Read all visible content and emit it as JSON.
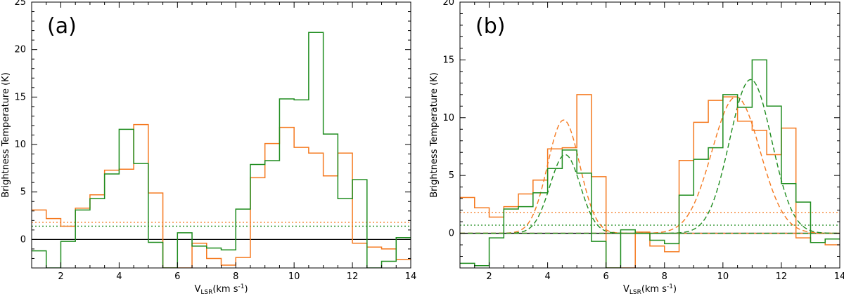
{
  "colors": {
    "orange": "#f5791f",
    "green": "#1e8c1e",
    "axis": "#000000"
  },
  "chart_data": [
    {
      "type": "line",
      "panel_label": "(a)",
      "xlabel_main": "V",
      "xlabel_sub": "LSR",
      "xlabel_rest": "(km s",
      "xlabel_sup": "-1",
      "xlabel_close": ")",
      "ylabel": "Brightness Temperature (K)",
      "xlim": [
        1,
        14
      ],
      "ylim": [
        -3,
        25
      ],
      "xticks": [
        2,
        4,
        6,
        8,
        10,
        12,
        14
      ],
      "yticks": [
        0,
        5,
        10,
        15,
        20,
        25
      ],
      "bin_edges": [
        1.0,
        1.5,
        2.0,
        2.5,
        3.0,
        3.5,
        4.0,
        4.5,
        5.0,
        5.5,
        6.0,
        6.5,
        7.0,
        7.5,
        8.0,
        8.5,
        9.0,
        9.5,
        10.0,
        10.5,
        11.0,
        11.5,
        12.0,
        12.5,
        13.0,
        13.5,
        14.0
      ],
      "series": [
        {
          "color": "orange",
          "style": "step",
          "values": [
            3.1,
            2.2,
            1.4,
            3.3,
            4.7,
            7.3,
            7.4,
            12.1,
            4.9,
            -3,
            -3,
            -0.4,
            -2.0,
            -2.7,
            -1.9,
            6.5,
            10.1,
            11.8,
            9.7,
            9.1,
            6.7,
            9.1,
            -0.4,
            -0.8,
            -1.0,
            -2.1
          ]
        },
        {
          "color": "green",
          "style": "step",
          "values": [
            -1.2,
            -3,
            -0.2,
            3.1,
            4.3,
            6.9,
            11.6,
            8.0,
            -0.3,
            -3,
            0.7,
            -0.7,
            -0.9,
            -1.1,
            3.2,
            7.9,
            8.3,
            14.8,
            14.7,
            21.8,
            11.1,
            4.3,
            6.3,
            -3,
            -2.3,
            0.2
          ]
        }
      ],
      "hlines": [
        {
          "color": "axis",
          "style": "solid",
          "y": 0
        },
        {
          "color": "orange",
          "style": "dotted",
          "y": 1.8
        },
        {
          "color": "green",
          "style": "dotted",
          "y": 1.4
        }
      ],
      "gaussians": []
    },
    {
      "type": "line",
      "panel_label": "(b)",
      "xlabel_main": "V",
      "xlabel_sub": "LSR",
      "xlabel_rest": "(km s",
      "xlabel_sup": "-1",
      "xlabel_close": ")",
      "ylabel": "Brightness Temperature (K)",
      "xlim": [
        1,
        14
      ],
      "ylim": [
        -3,
        20
      ],
      "xticks": [
        2,
        4,
        6,
        8,
        10,
        12,
        14
      ],
      "yticks": [
        0,
        5,
        10,
        15,
        20
      ],
      "bin_edges": [
        1.0,
        1.5,
        2.0,
        2.5,
        3.0,
        3.5,
        4.0,
        4.5,
        5.0,
        5.5,
        6.0,
        6.5,
        7.0,
        7.5,
        8.0,
        8.5,
        9.0,
        9.5,
        10.0,
        10.5,
        11.0,
        11.5,
        12.0,
        12.5,
        13.0,
        13.5,
        14.0
      ],
      "series": [
        {
          "color": "orange",
          "style": "step",
          "values": [
            3.1,
            2.2,
            1.4,
            2.3,
            3.4,
            4.6,
            7.3,
            7.4,
            12.0,
            4.9,
            -3,
            -3,
            0.1,
            -1.1,
            -1.6,
            6.3,
            9.6,
            11.5,
            11.8,
            9.7,
            8.9,
            6.8,
            9.1,
            -0.4,
            -0.8,
            -1.0
          ]
        },
        {
          "color": "green",
          "style": "step",
          "values": [
            -2.6,
            -2.8,
            -0.4,
            2.1,
            2.3,
            3.5,
            5.6,
            7.2,
            5.2,
            -0.7,
            -3,
            0.3,
            0.0,
            -0.6,
            -0.9,
            3.3,
            6.4,
            7.4,
            12.0,
            10.9,
            15.0,
            11.0,
            4.3,
            2.7,
            -0.8,
            -0.5
          ]
        }
      ],
      "hlines": [
        {
          "color": "axis",
          "style": "solid",
          "y": 0
        },
        {
          "color": "orange",
          "style": "dotted",
          "y": 1.8
        },
        {
          "color": "green",
          "style": "dotted",
          "y": 0.7
        }
      ],
      "gaussians": [
        {
          "color": "orange",
          "style": "dashed",
          "amp": 9.8,
          "center": 4.55,
          "sigma": 0.55
        },
        {
          "color": "green",
          "style": "dashed",
          "amp": 6.8,
          "center": 4.6,
          "sigma": 0.52
        },
        {
          "color": "orange",
          "style": "dashed",
          "amp": 11.8,
          "center": 10.45,
          "sigma": 0.82
        },
        {
          "color": "green",
          "style": "dashed",
          "amp": 13.3,
          "center": 10.95,
          "sigma": 0.72
        }
      ]
    }
  ]
}
